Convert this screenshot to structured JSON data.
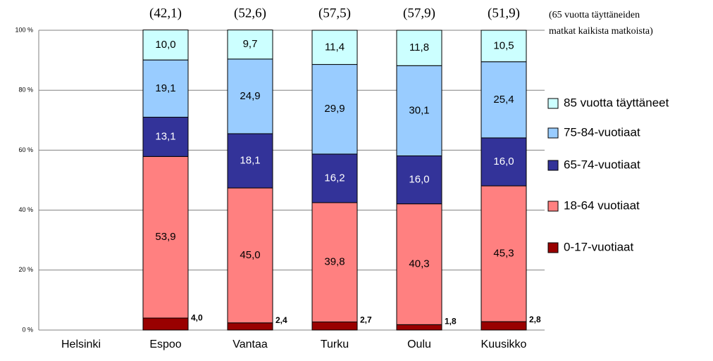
{
  "chart_data": {
    "type": "stacked_bar",
    "categories": [
      "Helsinki",
      "Espoo",
      "Vantaa",
      "Turku",
      "Oulu",
      "Kuusikko"
    ],
    "series": [
      {
        "name": "0-17-vuotiaat",
        "color": "#990000",
        "values": [
          null,
          4.0,
          2.4,
          2.7,
          1.8,
          2.8
        ],
        "value_labels": [
          null,
          "4,0",
          "2,4",
          "2,7",
          "1,8",
          "2,8"
        ]
      },
      {
        "name": "18-64 vuotiaat",
        "color": "#ff8080",
        "values": [
          null,
          53.9,
          45.0,
          39.8,
          40.3,
          45.3
        ],
        "value_labels": [
          null,
          "53,9",
          "45,0",
          "39,8",
          "40,3",
          "45,3"
        ]
      },
      {
        "name": "65-74-vuotiaat",
        "color": "#333399",
        "values": [
          null,
          13.1,
          18.1,
          16.2,
          16.0,
          16.0
        ],
        "value_labels": [
          null,
          "13,1",
          "18,1",
          "16,2",
          "16,0",
          "16,0"
        ]
      },
      {
        "name": "75-84-vuotiaat",
        "color": "#99ccff",
        "values": [
          null,
          19.1,
          24.9,
          29.9,
          30.1,
          25.4
        ],
        "value_labels": [
          null,
          "19,1",
          "24,9",
          "29,9",
          "30,1",
          "25,4"
        ]
      },
      {
        "name": "85 vuotta täyttäneet",
        "color": "#ccffff",
        "values": [
          null,
          10.0,
          9.7,
          11.4,
          11.8,
          10.5
        ],
        "value_labels": [
          null,
          "10,0",
          "9,7",
          "11,4",
          "11,8",
          "10,5"
        ]
      }
    ],
    "annotations": [
      null,
      "(42,1)",
      "(52,6)",
      "(57,5)",
      "(57,9)",
      "(51,9)"
    ],
    "note": [
      "(65 vuotta täyttäneiden",
      "matkat kaikista matkoista)"
    ],
    "ylim": [
      0,
      100
    ],
    "yticks": [
      {
        "value": 0,
        "label": "0 %"
      },
      {
        "value": 20,
        "label": "20 %"
      },
      {
        "value": 40,
        "label": "40 %"
      },
      {
        "value": 60,
        "label": "60 %"
      },
      {
        "value": 80,
        "label": "80 %"
      },
      {
        "value": 100,
        "label": "100 %"
      }
    ],
    "grid": true,
    "legend": "right"
  }
}
